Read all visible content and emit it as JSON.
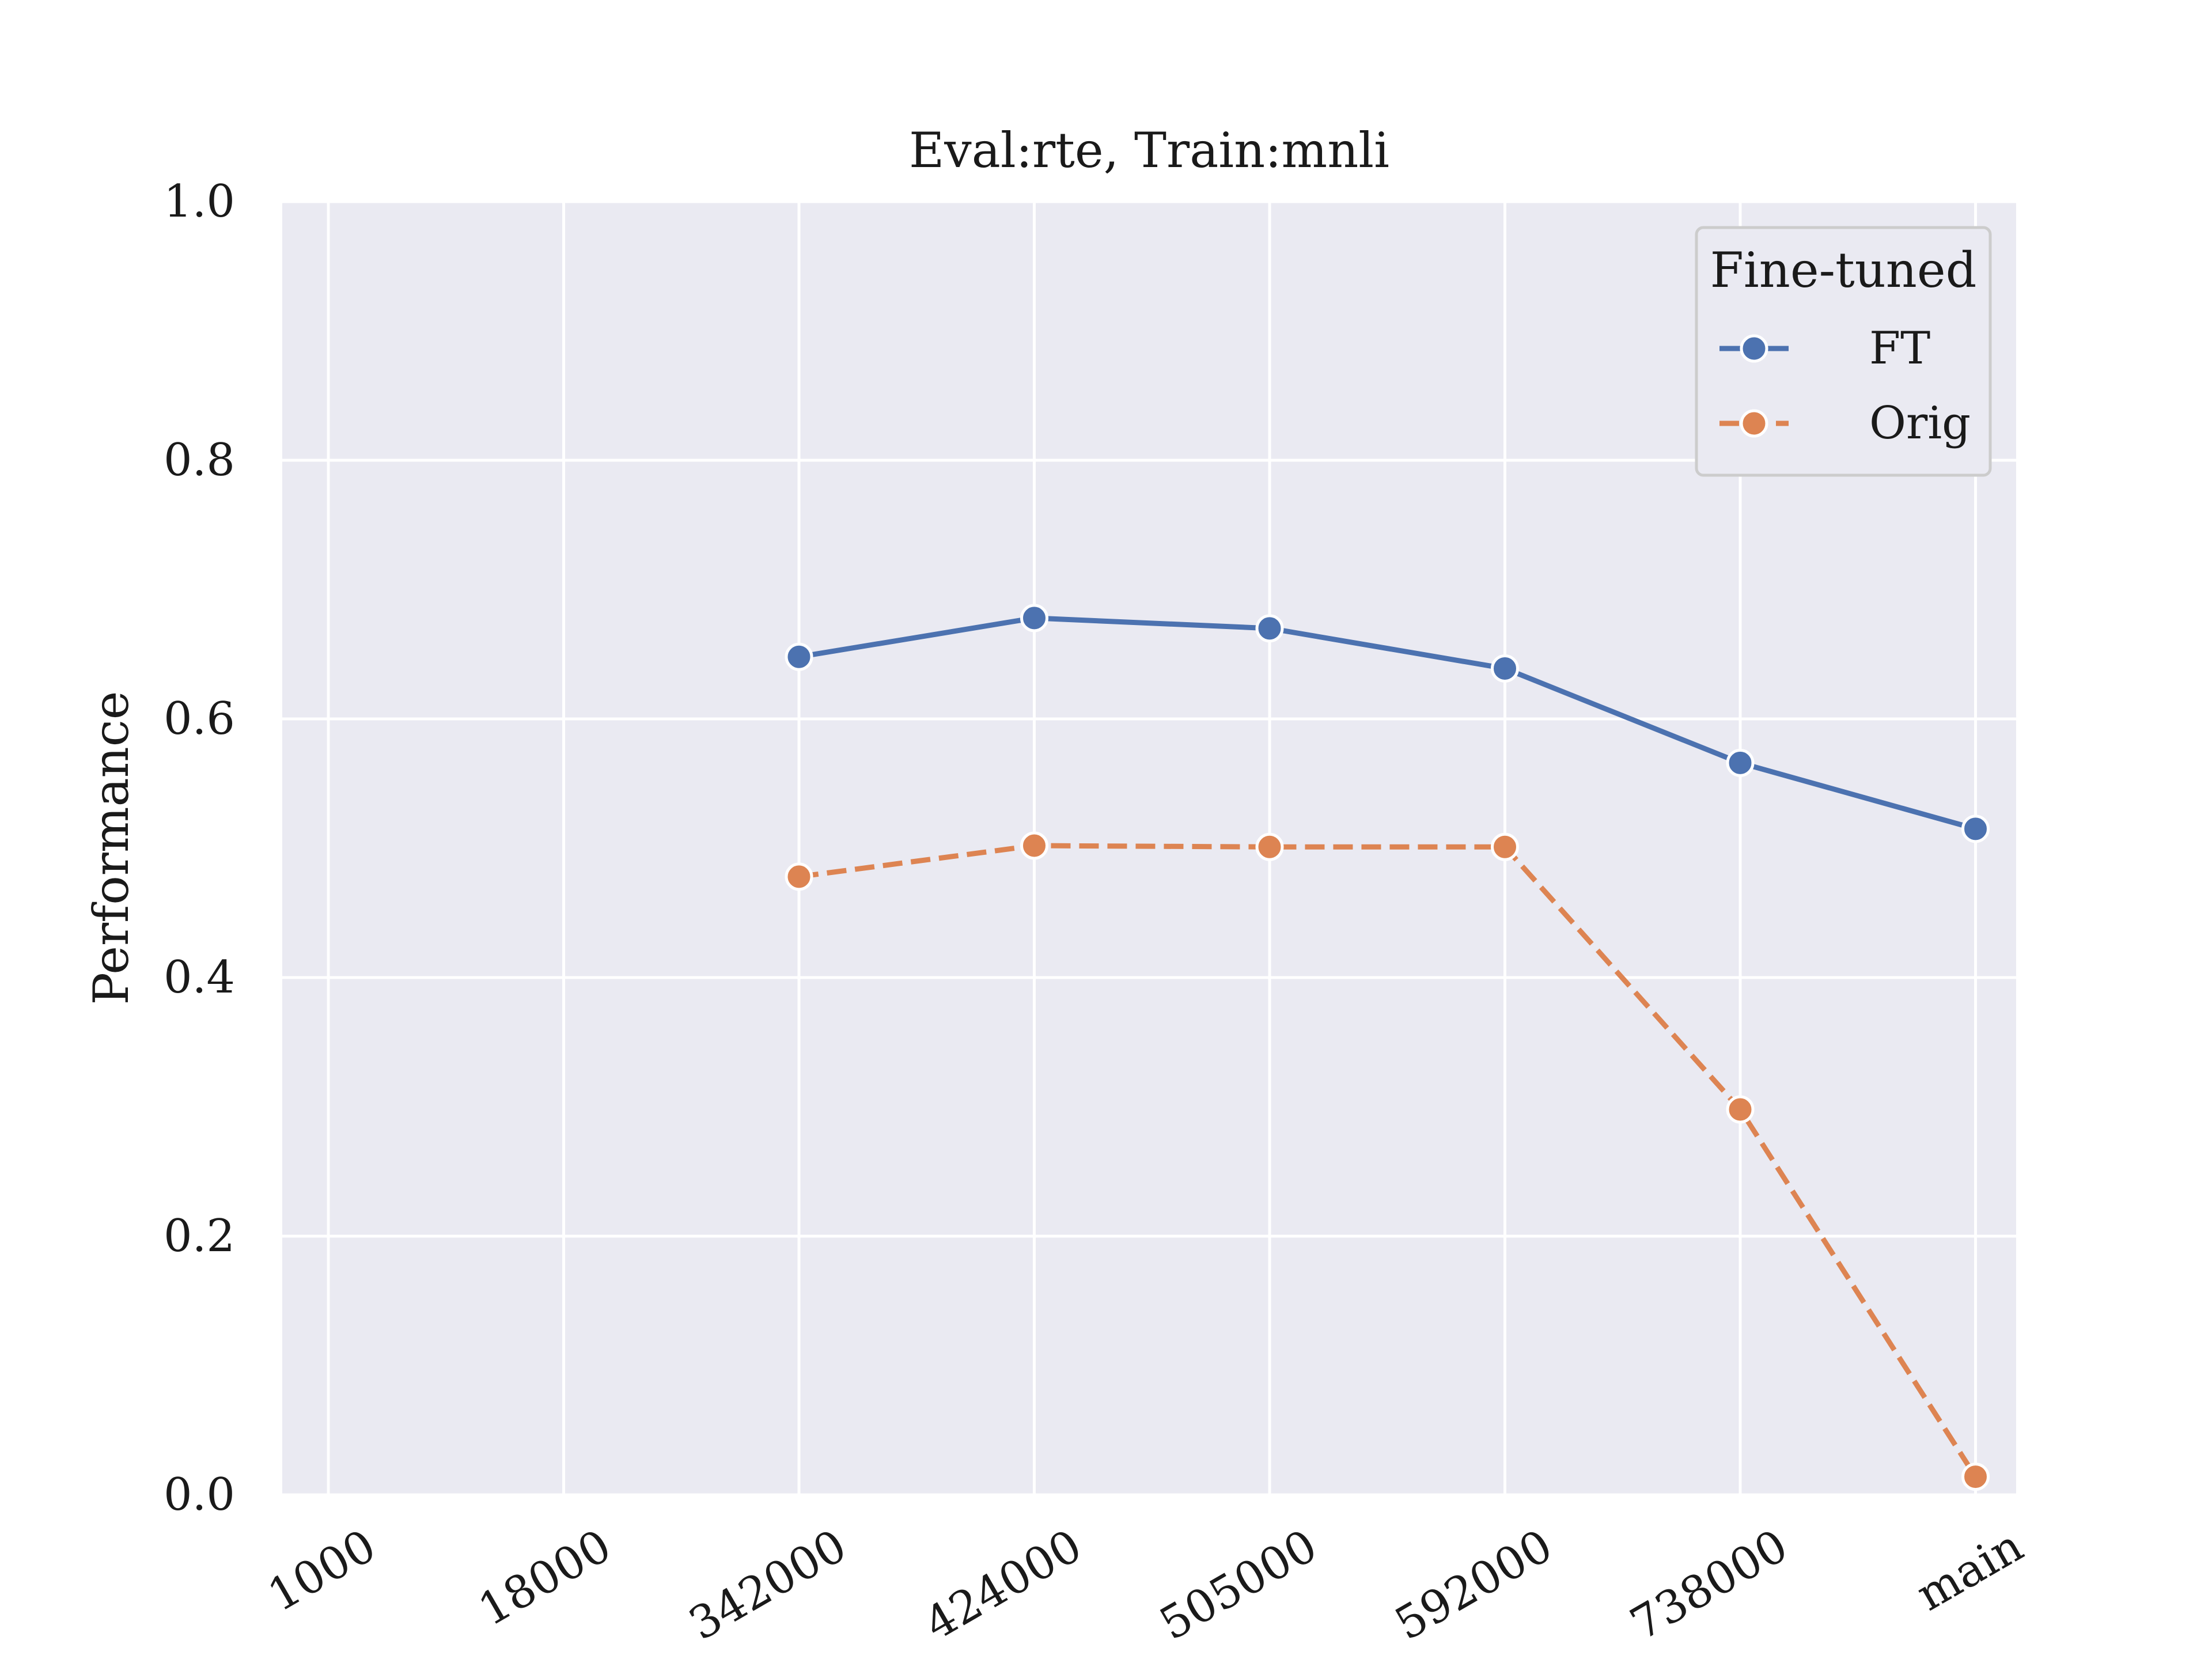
{
  "chart_data": {
    "type": "line",
    "title": "Eval:rte, Train:mnli",
    "xlabel": "",
    "ylabel": "Performance",
    "categories": [
      "1000",
      "18000",
      "342000",
      "424000",
      "505000",
      "592000",
      "738000",
      "main"
    ],
    "ylim": [
      0.0,
      1.0
    ],
    "yticks": [
      "0.0",
      "0.2",
      "0.4",
      "0.6",
      "0.8",
      "1.0"
    ],
    "grid": true,
    "legend": {
      "title": "Fine-tuned",
      "placement": "top-right"
    },
    "series": [
      {
        "name": "FT",
        "color": "#4c72b0",
        "dash": "solid",
        "values": [
          null,
          null,
          0.648,
          0.678,
          0.67,
          0.639,
          0.566,
          0.515
        ]
      },
      {
        "name": "Orig",
        "color": "#dd8452",
        "dash": "dashed",
        "values": [
          null,
          null,
          0.478,
          0.502,
          0.501,
          0.501,
          0.298,
          0.014
        ]
      }
    ]
  }
}
